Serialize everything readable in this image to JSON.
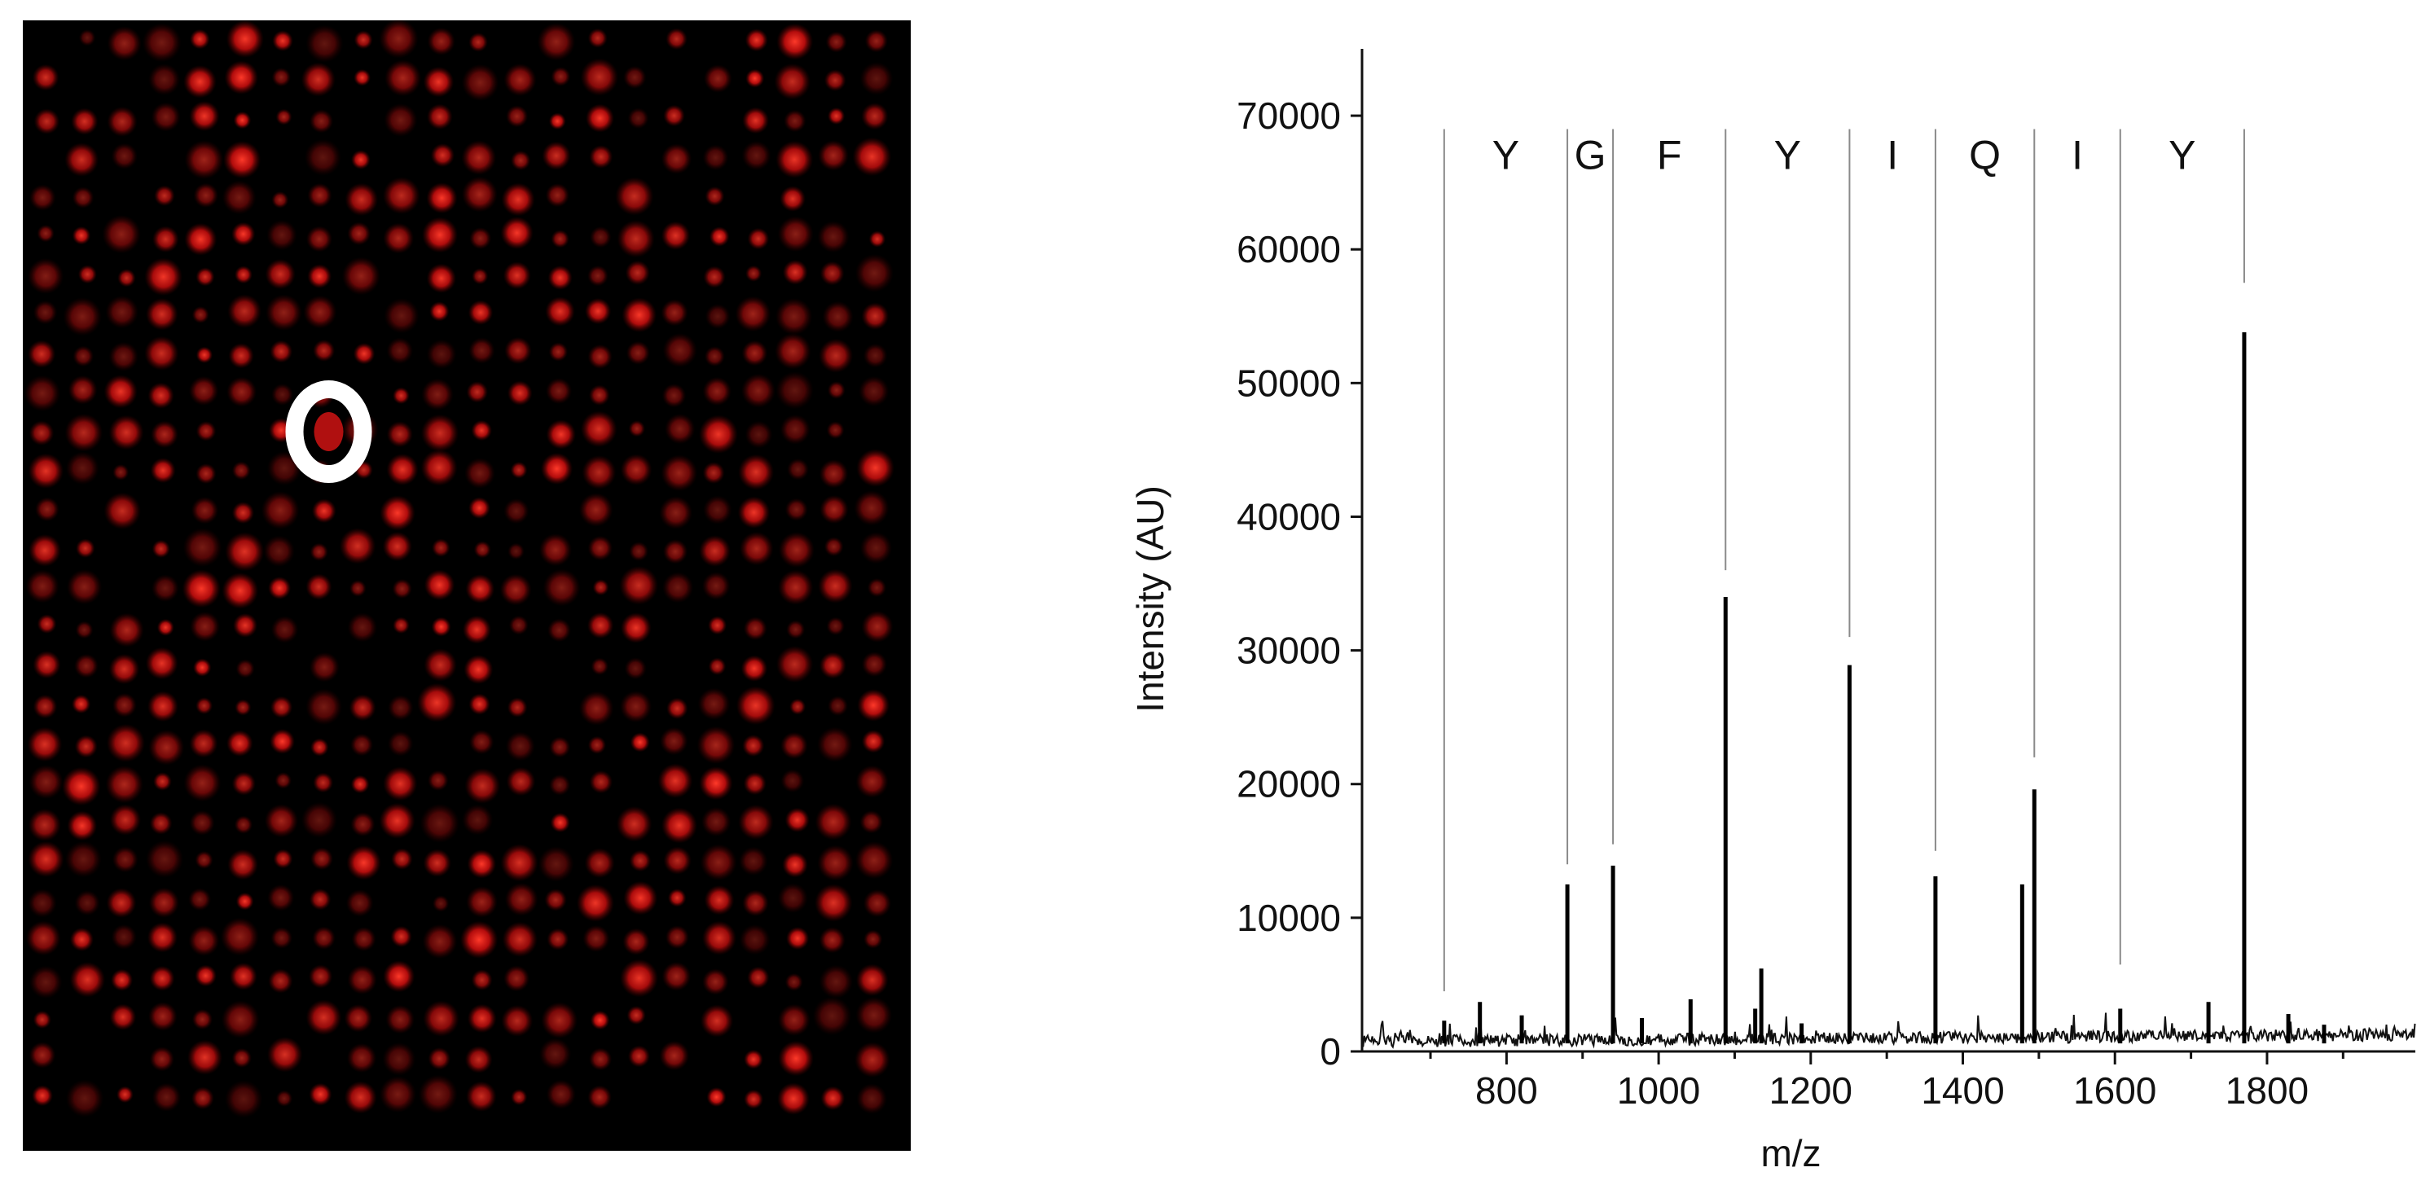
{
  "chart_data": [
    {
      "type": "heatmap",
      "title": "",
      "colors": {
        "background": "#000000",
        "spot": "#e01010",
        "highlight_ring": "#ffffff"
      },
      "highlighted_spot": {
        "row": 10,
        "col": 7
      }
    },
    {
      "type": "line",
      "title": "",
      "xlabel": "m/z",
      "ylabel": "Intensity (AU)",
      "xlim": [
        610,
        1995
      ],
      "ylim": [
        0,
        75000
      ],
      "x_ticks": [
        800,
        1000,
        1200,
        1400,
        1600,
        1800
      ],
      "y_ticks": [
        0,
        10000,
        20000,
        30000,
        40000,
        50000,
        60000,
        70000
      ],
      "peaks": [
        {
          "mz": 718,
          "intensity": 2300
        },
        {
          "mz": 765,
          "intensity": 3700
        },
        {
          "mz": 820,
          "intensity": 2700
        },
        {
          "mz": 880,
          "intensity": 12500
        },
        {
          "mz": 940,
          "intensity": 13900
        },
        {
          "mz": 978,
          "intensity": 2500
        },
        {
          "mz": 1042,
          "intensity": 3900
        },
        {
          "mz": 1088,
          "intensity": 34000
        },
        {
          "mz": 1127,
          "intensity": 3200
        },
        {
          "mz": 1135,
          "intensity": 6200
        },
        {
          "mz": 1188,
          "intensity": 2100
        },
        {
          "mz": 1251,
          "intensity": 28900
        },
        {
          "mz": 1364,
          "intensity": 13100
        },
        {
          "mz": 1478,
          "intensity": 12500
        },
        {
          "mz": 1494,
          "intensity": 19600
        },
        {
          "mz": 1607,
          "intensity": 3200
        },
        {
          "mz": 1723,
          "intensity": 3700
        },
        {
          "mz": 1770,
          "intensity": 53800
        },
        {
          "mz": 1828,
          "intensity": 2800
        },
        {
          "mz": 1875,
          "intensity": 2000
        }
      ],
      "sequence_ladder": {
        "marker_mz": [
          718,
          880,
          940,
          1088,
          1251,
          1364,
          1494,
          1607,
          1770
        ],
        "marker_bottom_intensity": [
          4500,
          14000,
          15500,
          36000,
          31000,
          15000,
          22000,
          6500,
          57500
        ],
        "residues": [
          "Y",
          "G",
          "F",
          "Y",
          "I",
          "Q",
          "I",
          "Y"
        ],
        "marker_top_intensity": 69000,
        "label_intensity": 66000
      }
    }
  ]
}
